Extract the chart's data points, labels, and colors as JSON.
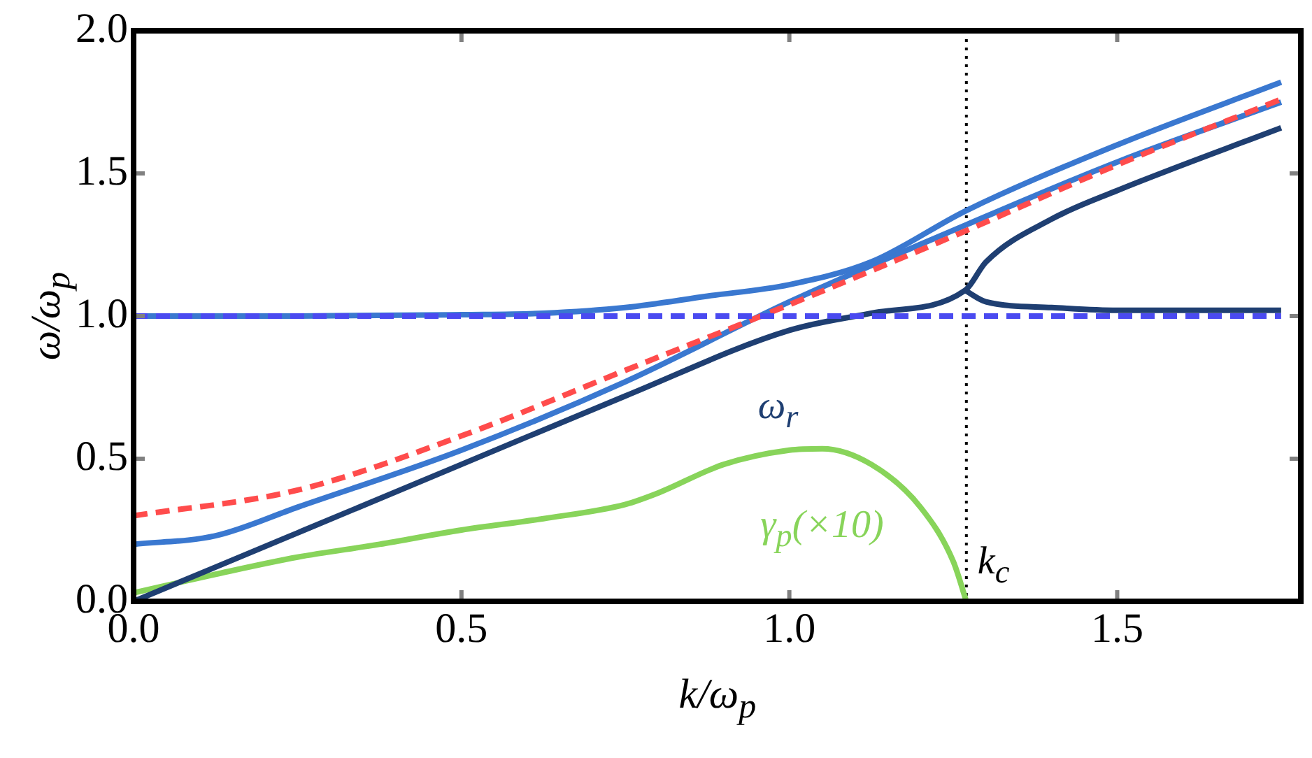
{
  "chart_data": {
    "type": "line",
    "xlabel": "k/ω$_{p}$",
    "ylabel": "ω/ω$_{p}$",
    "xlim": [
      0,
      1.78
    ],
    "xticks": [
      {
        "value": 0,
        "label": "0.0"
      },
      0.5,
      {
        "value": 1,
        "label": "1.0"
      },
      1.5
    ],
    "ylim": [
      0,
      2
    ],
    "yticks": [
      {
        "value": 0,
        "label": "0.0"
      },
      0.5,
      {
        "value": 1,
        "label": "1.0"
      },
      1.5,
      {
        "value": 2,
        "label": "2.0"
      }
    ],
    "grid": false,
    "legend": false,
    "marker": "none",
    "line_style": "solid",
    "series": [
      {
        "color": "#4a4af0",
        "line_style": "dashed",
        "x": [
          0,
          1.75
        ],
        "values": [
          1.0,
          1.0
        ]
      },
      {
        "color": "#ff4c4c",
        "line_style": "dashed",
        "x": [
          0,
          0.25,
          0.5,
          0.75,
          1.0,
          1.25,
          1.5,
          1.75
        ],
        "values": [
          0.3,
          0.39,
          0.58,
          0.81,
          1.04,
          1.28,
          1.53,
          1.76
        ]
      },
      {
        "color": "#3a78d0",
        "x": [
          0,
          0.25,
          0.5,
          0.625,
          0.75,
          0.875,
          1.0,
          1.125,
          1.27,
          1.5,
          1.75
        ],
        "values": [
          1.0,
          1.0,
          1.005,
          1.01,
          1.03,
          1.07,
          1.11,
          1.19,
          1.37,
          1.6,
          1.82
        ]
      },
      {
        "color": "#3a78d0",
        "x": [
          0,
          0.125,
          0.25,
          0.5,
          0.75,
          1.0,
          1.27,
          1.5,
          1.75
        ],
        "values": [
          0.2,
          0.23,
          0.33,
          0.53,
          0.77,
          1.05,
          1.32,
          1.54,
          1.75
        ]
      },
      {
        "name": "ω$_{r}$",
        "color": "#1f3f72",
        "x": [
          0,
          0.25,
          0.5,
          0.75,
          1.0,
          1.125,
          1.268,
          1.3,
          1.4,
          1.5,
          1.75
        ],
        "values": [
          0,
          0.24,
          0.48,
          0.72,
          0.95,
          1.01,
          1.09,
          1.19,
          1.34,
          1.44,
          1.66
        ]
      },
      {
        "color": "#1f3f72",
        "x": [
          1.268,
          1.3,
          1.4,
          1.5,
          1.75
        ],
        "values": [
          1.09,
          1.05,
          1.03,
          1.02,
          1.02
        ]
      },
      {
        "name": "γ$_{p}$(×10)",
        "color": "#88d45a",
        "x": [
          0,
          0.125,
          0.25,
          0.375,
          0.5,
          0.625,
          0.75,
          0.8,
          0.9,
          1.0,
          1.05,
          1.125,
          1.2,
          1.25,
          1.27
        ],
        "values": [
          0.03,
          0.095,
          0.155,
          0.2,
          0.25,
          0.29,
          0.34,
          0.38,
          0.48,
          0.53,
          0.535,
          0.48,
          0.33,
          0.14,
          0
        ]
      }
    ],
    "ref_lines": [
      {
        "axis": "x",
        "value": 1.27,
        "label": "k$_{c}$",
        "color": "#000000",
        "line_style": "dotted"
      }
    ]
  }
}
